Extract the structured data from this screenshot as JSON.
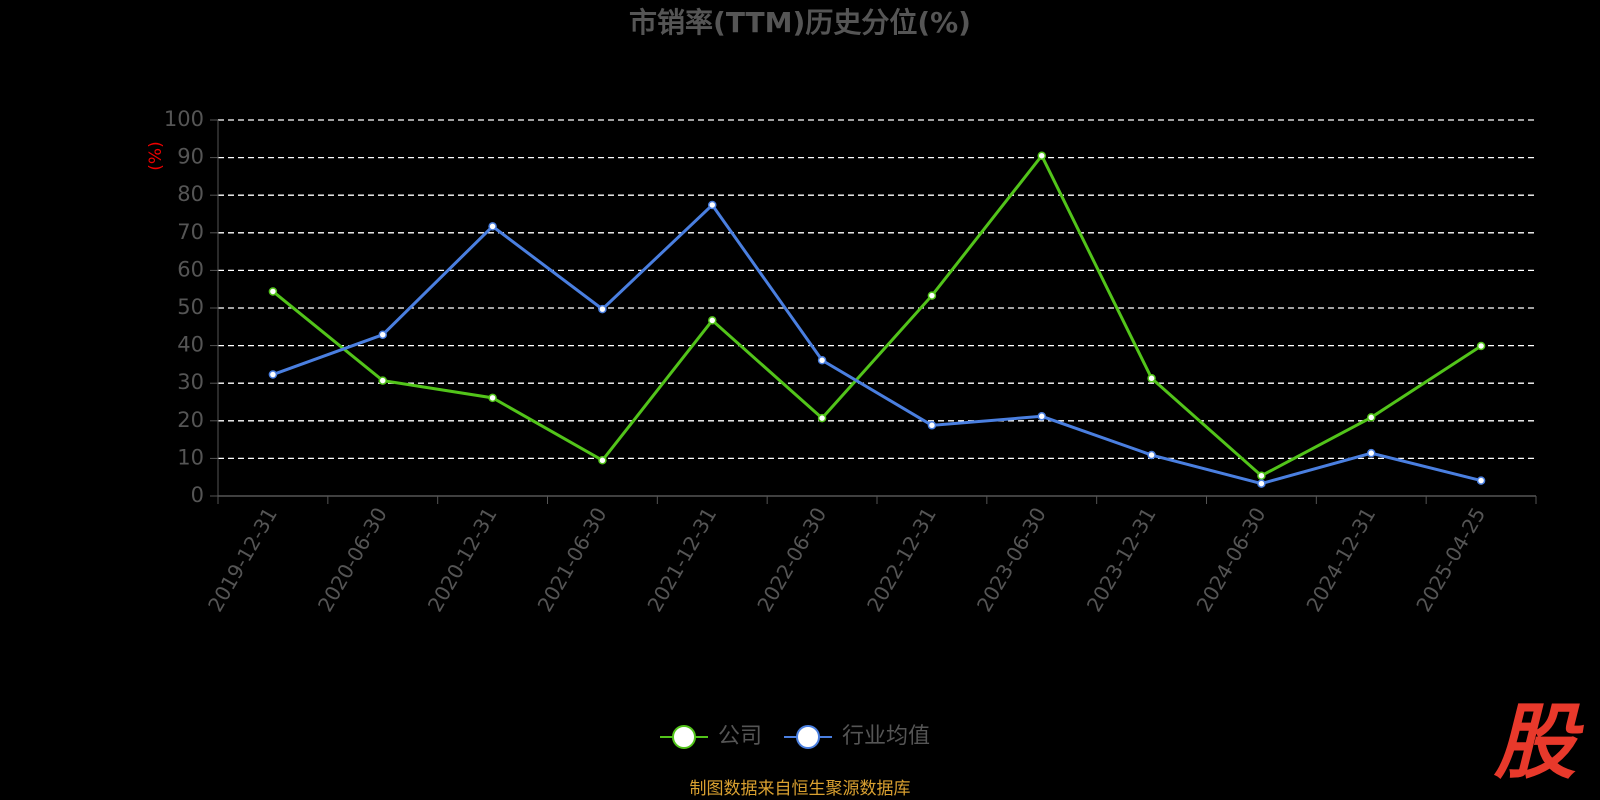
{
  "chart_data": {
    "type": "line",
    "title": "市销率(TTM)历史分位(%)",
    "y_label": "(%)",
    "categories": [
      "2019-12-31",
      "2020-06-30",
      "2020-12-31",
      "2021-06-30",
      "2021-12-31",
      "2022-06-30",
      "2022-12-31",
      "2023-06-30",
      "2023-12-31",
      "2024-06-30",
      "2024-12-31",
      "2025-04-25"
    ],
    "series": [
      {
        "name": "公司",
        "color": "#52c41a",
        "values": [
          54.4,
          30.7,
          26.1,
          9.5,
          46.7,
          20.7,
          53.3,
          90.5,
          31.3,
          5.4,
          20.9,
          39.9
        ]
      },
      {
        "name": "行业均值",
        "color": "#4a7fe0",
        "values": [
          32.3,
          42.9,
          71.7,
          49.7,
          77.4,
          36.1,
          18.8,
          21.2,
          10.9,
          3.3,
          11.4,
          4.1
        ]
      }
    ],
    "ylim": [
      0,
      100
    ],
    "yticks": [
      0,
      10,
      20,
      30,
      40,
      50,
      60,
      70,
      80,
      90,
      100
    ],
    "grid": true,
    "legend": "bottom"
  },
  "source": "制图数据来自恒生聚源数据库",
  "logo": "股"
}
